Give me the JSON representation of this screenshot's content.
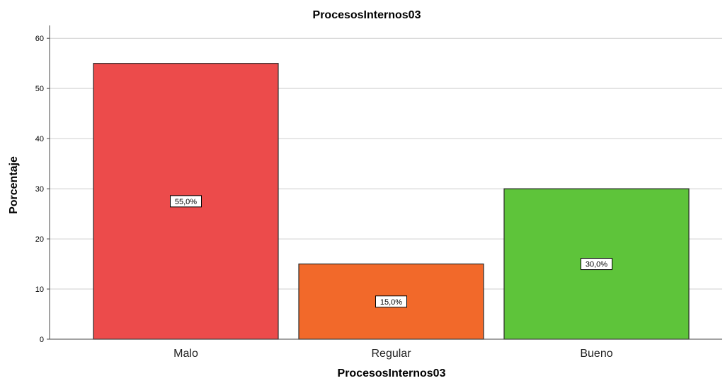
{
  "chart_data": {
    "type": "bar",
    "title": "ProcesosInternos03",
    "xlabel": "ProcesosInternos03",
    "ylabel": "Porcentaje",
    "categories": [
      "Malo",
      "Regular",
      "Bueno"
    ],
    "values": [
      55,
      15,
      30
    ],
    "data_labels": [
      "55,0%",
      "15,0%",
      "30,0%"
    ],
    "colors": [
      "#ec4b4b",
      "#f2692a",
      "#5ec43a"
    ],
    "ylim": [
      0,
      62
    ],
    "yticks": [
      0,
      10,
      20,
      30,
      40,
      50,
      60
    ],
    "grid": true,
    "legend": "none"
  }
}
